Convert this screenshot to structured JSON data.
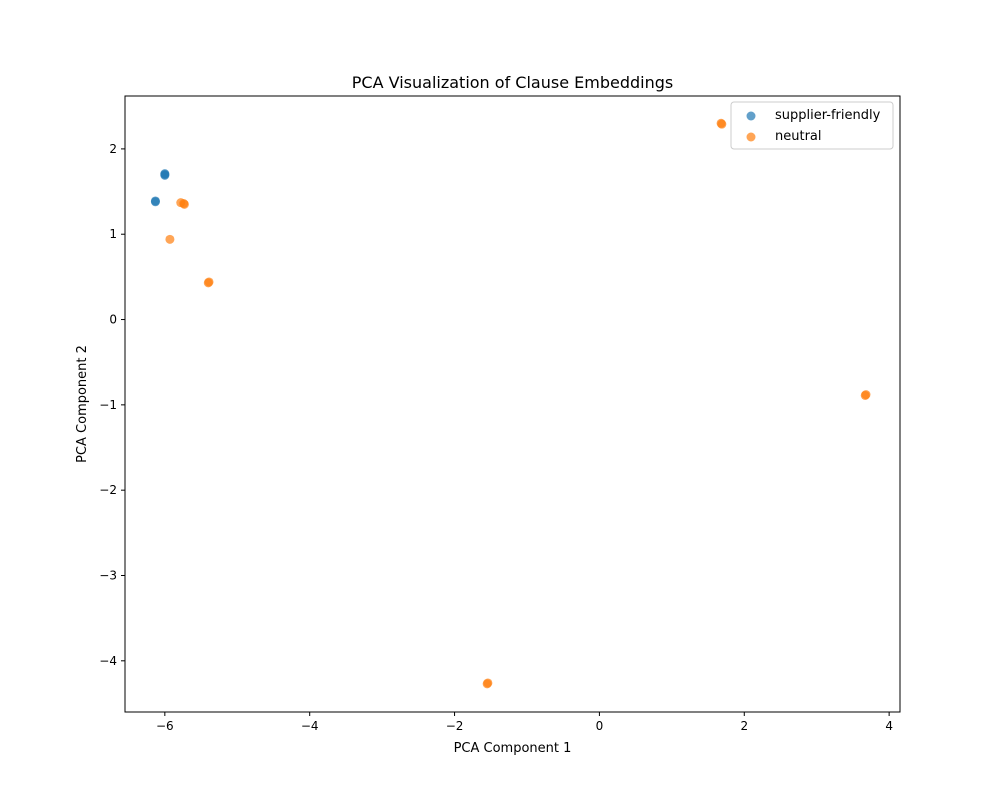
{
  "chart_data": {
    "type": "scatter",
    "title": "PCA Visualization of Clause Embeddings",
    "xlabel": "PCA Component 1",
    "ylabel": "PCA Component 2",
    "xlim": [
      -6.55,
      4.15
    ],
    "ylim": [
      -4.6,
      2.62
    ],
    "xticks": [
      -6,
      -4,
      -2,
      0,
      2,
      4
    ],
    "yticks": [
      -4,
      -3,
      -2,
      -1,
      0,
      1,
      2
    ],
    "grid": false,
    "legend_position": "top-right",
    "series": [
      {
        "name": "supplier-friendly",
        "color": "#1f77b4",
        "x": [
          -6.0,
          -6.0,
          -6.0,
          -6.13,
          -6.13
        ],
        "y": [
          1.7,
          1.71,
          1.69,
          1.39,
          1.38
        ]
      },
      {
        "name": "neutral",
        "color": "#ff7f0e",
        "x": [
          -5.78,
          -5.73,
          -5.74,
          -5.93,
          -5.4,
          -5.39,
          1.68,
          1.69,
          3.67,
          3.68,
          -1.55,
          -1.54
        ],
        "y": [
          1.37,
          1.35,
          1.36,
          0.94,
          0.43,
          0.44,
          2.3,
          2.29,
          -0.89,
          -0.88,
          -4.27,
          -4.26
        ]
      }
    ]
  }
}
